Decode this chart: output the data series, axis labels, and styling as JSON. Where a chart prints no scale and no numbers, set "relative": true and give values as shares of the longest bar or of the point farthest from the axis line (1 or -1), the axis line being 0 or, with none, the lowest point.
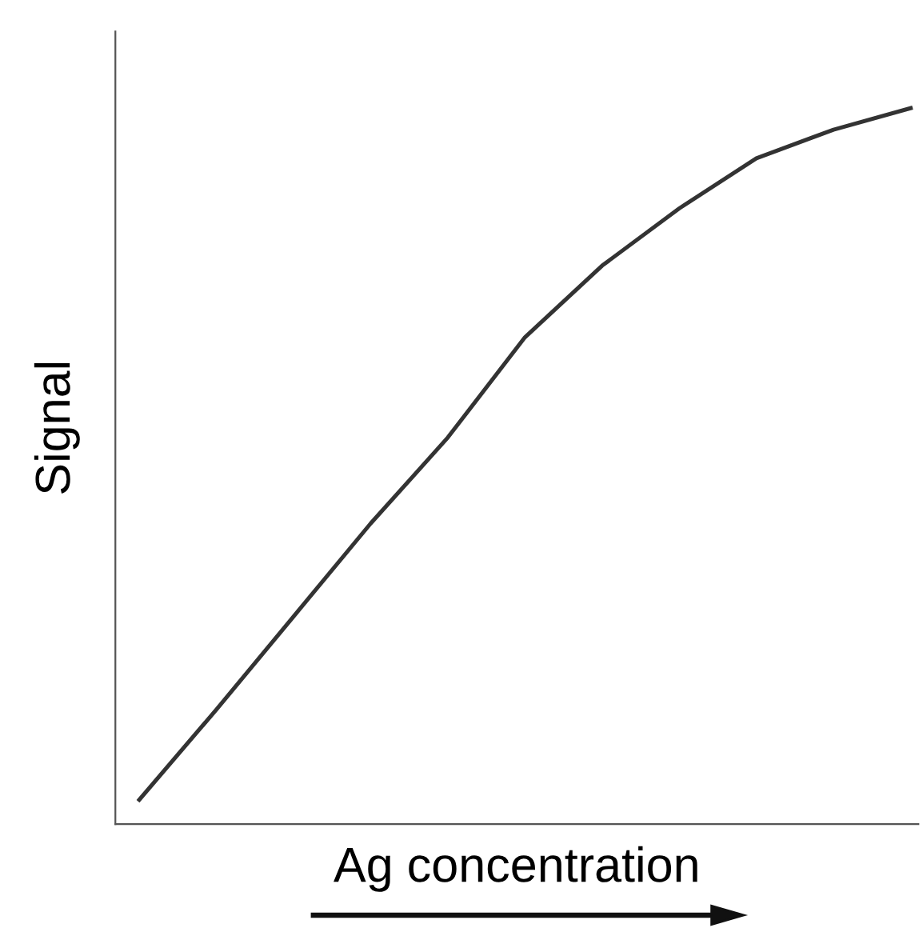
{
  "chart_data": {
    "type": "line",
    "relative": true,
    "xlabel": "Ag concentration",
    "ylabel": "Signal",
    "categories": [
      null,
      null,
      null,
      null,
      null,
      null,
      null,
      null,
      null,
      null,
      null
    ],
    "series": [
      {
        "color": "#333333",
        "values": [
          0.034,
          0.16,
          0.29,
          0.42,
          0.54,
          0.68,
          0.78,
          0.86,
          0.93,
          0.97,
          1.0
        ]
      }
    ],
    "grid": false,
    "tick_labels": false,
    "marker": "none",
    "line_style": "solid"
  }
}
